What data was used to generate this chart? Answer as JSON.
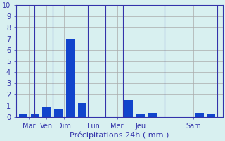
{
  "bars": [
    {
      "x": 1,
      "height": 0.3
    },
    {
      "x": 2,
      "height": 0.3
    },
    {
      "x": 3,
      "height": 0.9
    },
    {
      "x": 4,
      "height": 0.8
    },
    {
      "x": 5,
      "height": 7.0
    },
    {
      "x": 6,
      "height": 1.3
    },
    {
      "x": 7,
      "height": 0.0
    },
    {
      "x": 8,
      "height": 0.0
    },
    {
      "x": 9,
      "height": 0.0
    },
    {
      "x": 10,
      "height": 1.5
    },
    {
      "x": 11,
      "height": 0.3
    },
    {
      "x": 12,
      "height": 0.4
    },
    {
      "x": 13,
      "height": 0.0
    },
    {
      "x": 14,
      "height": 0.0
    },
    {
      "x": 15,
      "height": 0.0
    },
    {
      "x": 16,
      "height": 0.4
    },
    {
      "x": 17,
      "height": 0.3
    }
  ],
  "bar_color": "#1144cc",
  "bar_width": 0.7,
  "xtick_positions": [
    1.5,
    3,
    4.5,
    7,
    9,
    11,
    15.5
  ],
  "xtick_labels": [
    "Mar",
    "Ven",
    "Dim",
    "Lun",
    "Mer",
    "Jeu",
    "Sam"
  ],
  "xlabel": "Précipitations 24h ( mm )",
  "ylim": [
    0,
    10
  ],
  "yticks": [
    0,
    1,
    2,
    3,
    4,
    5,
    6,
    7,
    8,
    9,
    10
  ],
  "xlim": [
    0.4,
    18
  ],
  "background_color": "#d8f0f0",
  "grid_color": "#aaaaaa",
  "tick_color": "#3333aa",
  "xlabel_color": "#3333aa",
  "xlabel_fontsize": 8,
  "ytick_fontsize": 7,
  "xtick_fontsize": 7
}
